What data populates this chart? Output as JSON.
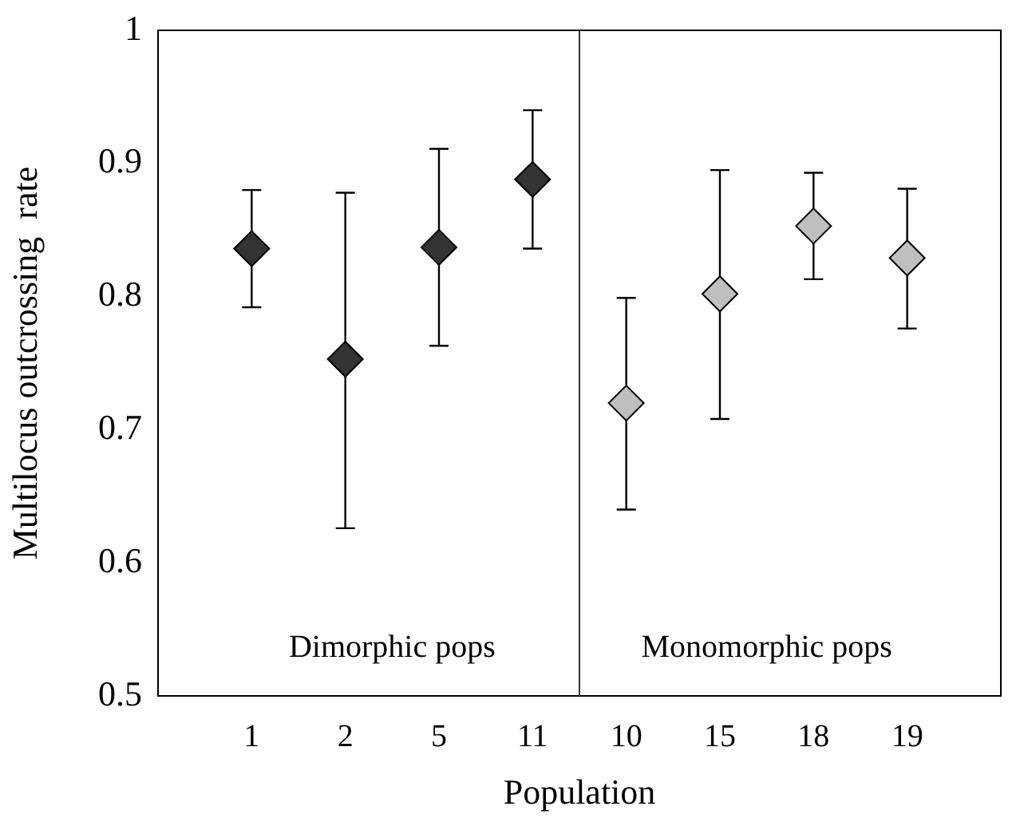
{
  "chart_data": {
    "type": "scatter",
    "xlabel": "Population",
    "ylabel": "Multilocus outcrossing  rate",
    "categories": [
      "1",
      "2",
      "5",
      "11",
      "10",
      "15",
      "18",
      "19"
    ],
    "series": [
      {
        "color": "#333333",
        "values": [
          0.836,
          0.753,
          0.837,
          0.888,
          null,
          null,
          null,
          null
        ],
        "errors": [
          [
            0.792,
            0.88
          ],
          [
            0.626,
            0.878
          ],
          [
            0.763,
            0.911
          ],
          [
            0.836,
            0.94
          ],
          null,
          null,
          null,
          null
        ]
      },
      {
        "color": "#bfbfbf",
        "values": [
          null,
          null,
          null,
          null,
          0.72,
          0.802,
          0.853,
          0.829
        ],
        "errors": [
          null,
          null,
          null,
          null,
          [
            0.64,
            0.799
          ],
          [
            0.708,
            0.895
          ],
          [
            0.813,
            0.893
          ],
          [
            0.776,
            0.881
          ]
        ]
      }
    ],
    "ylim": [
      0.5,
      1
    ],
    "yticks": [
      0.5,
      0.6,
      0.7,
      0.8,
      0.9,
      1
    ],
    "marker": "diamond",
    "annotations": [
      "Dimorphic pops",
      "Monomorphic pops"
    ]
  }
}
